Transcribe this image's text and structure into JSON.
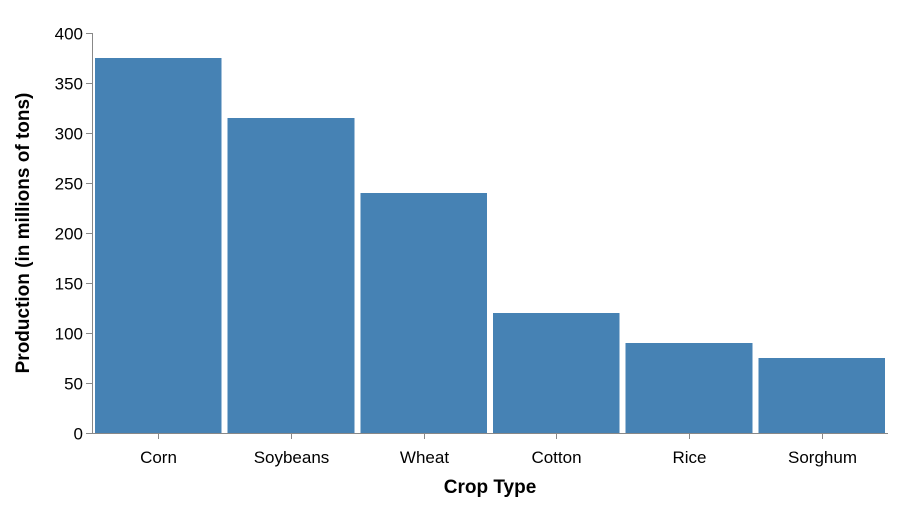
{
  "chart_data": {
    "type": "bar",
    "title": "",
    "xlabel": "Crop Type",
    "ylabel": "Production (in millions of tons)",
    "categories": [
      "Corn",
      "Soybeans",
      "Wheat",
      "Cotton",
      "Rice",
      "Sorghum"
    ],
    "values": [
      375,
      315,
      240,
      120,
      90,
      75
    ],
    "ylim": [
      0,
      400
    ],
    "yticks": [
      0,
      50,
      100,
      150,
      200,
      250,
      300,
      350,
      400
    ],
    "grid": false,
    "legend": "none",
    "bar_color": "#4682b4"
  }
}
